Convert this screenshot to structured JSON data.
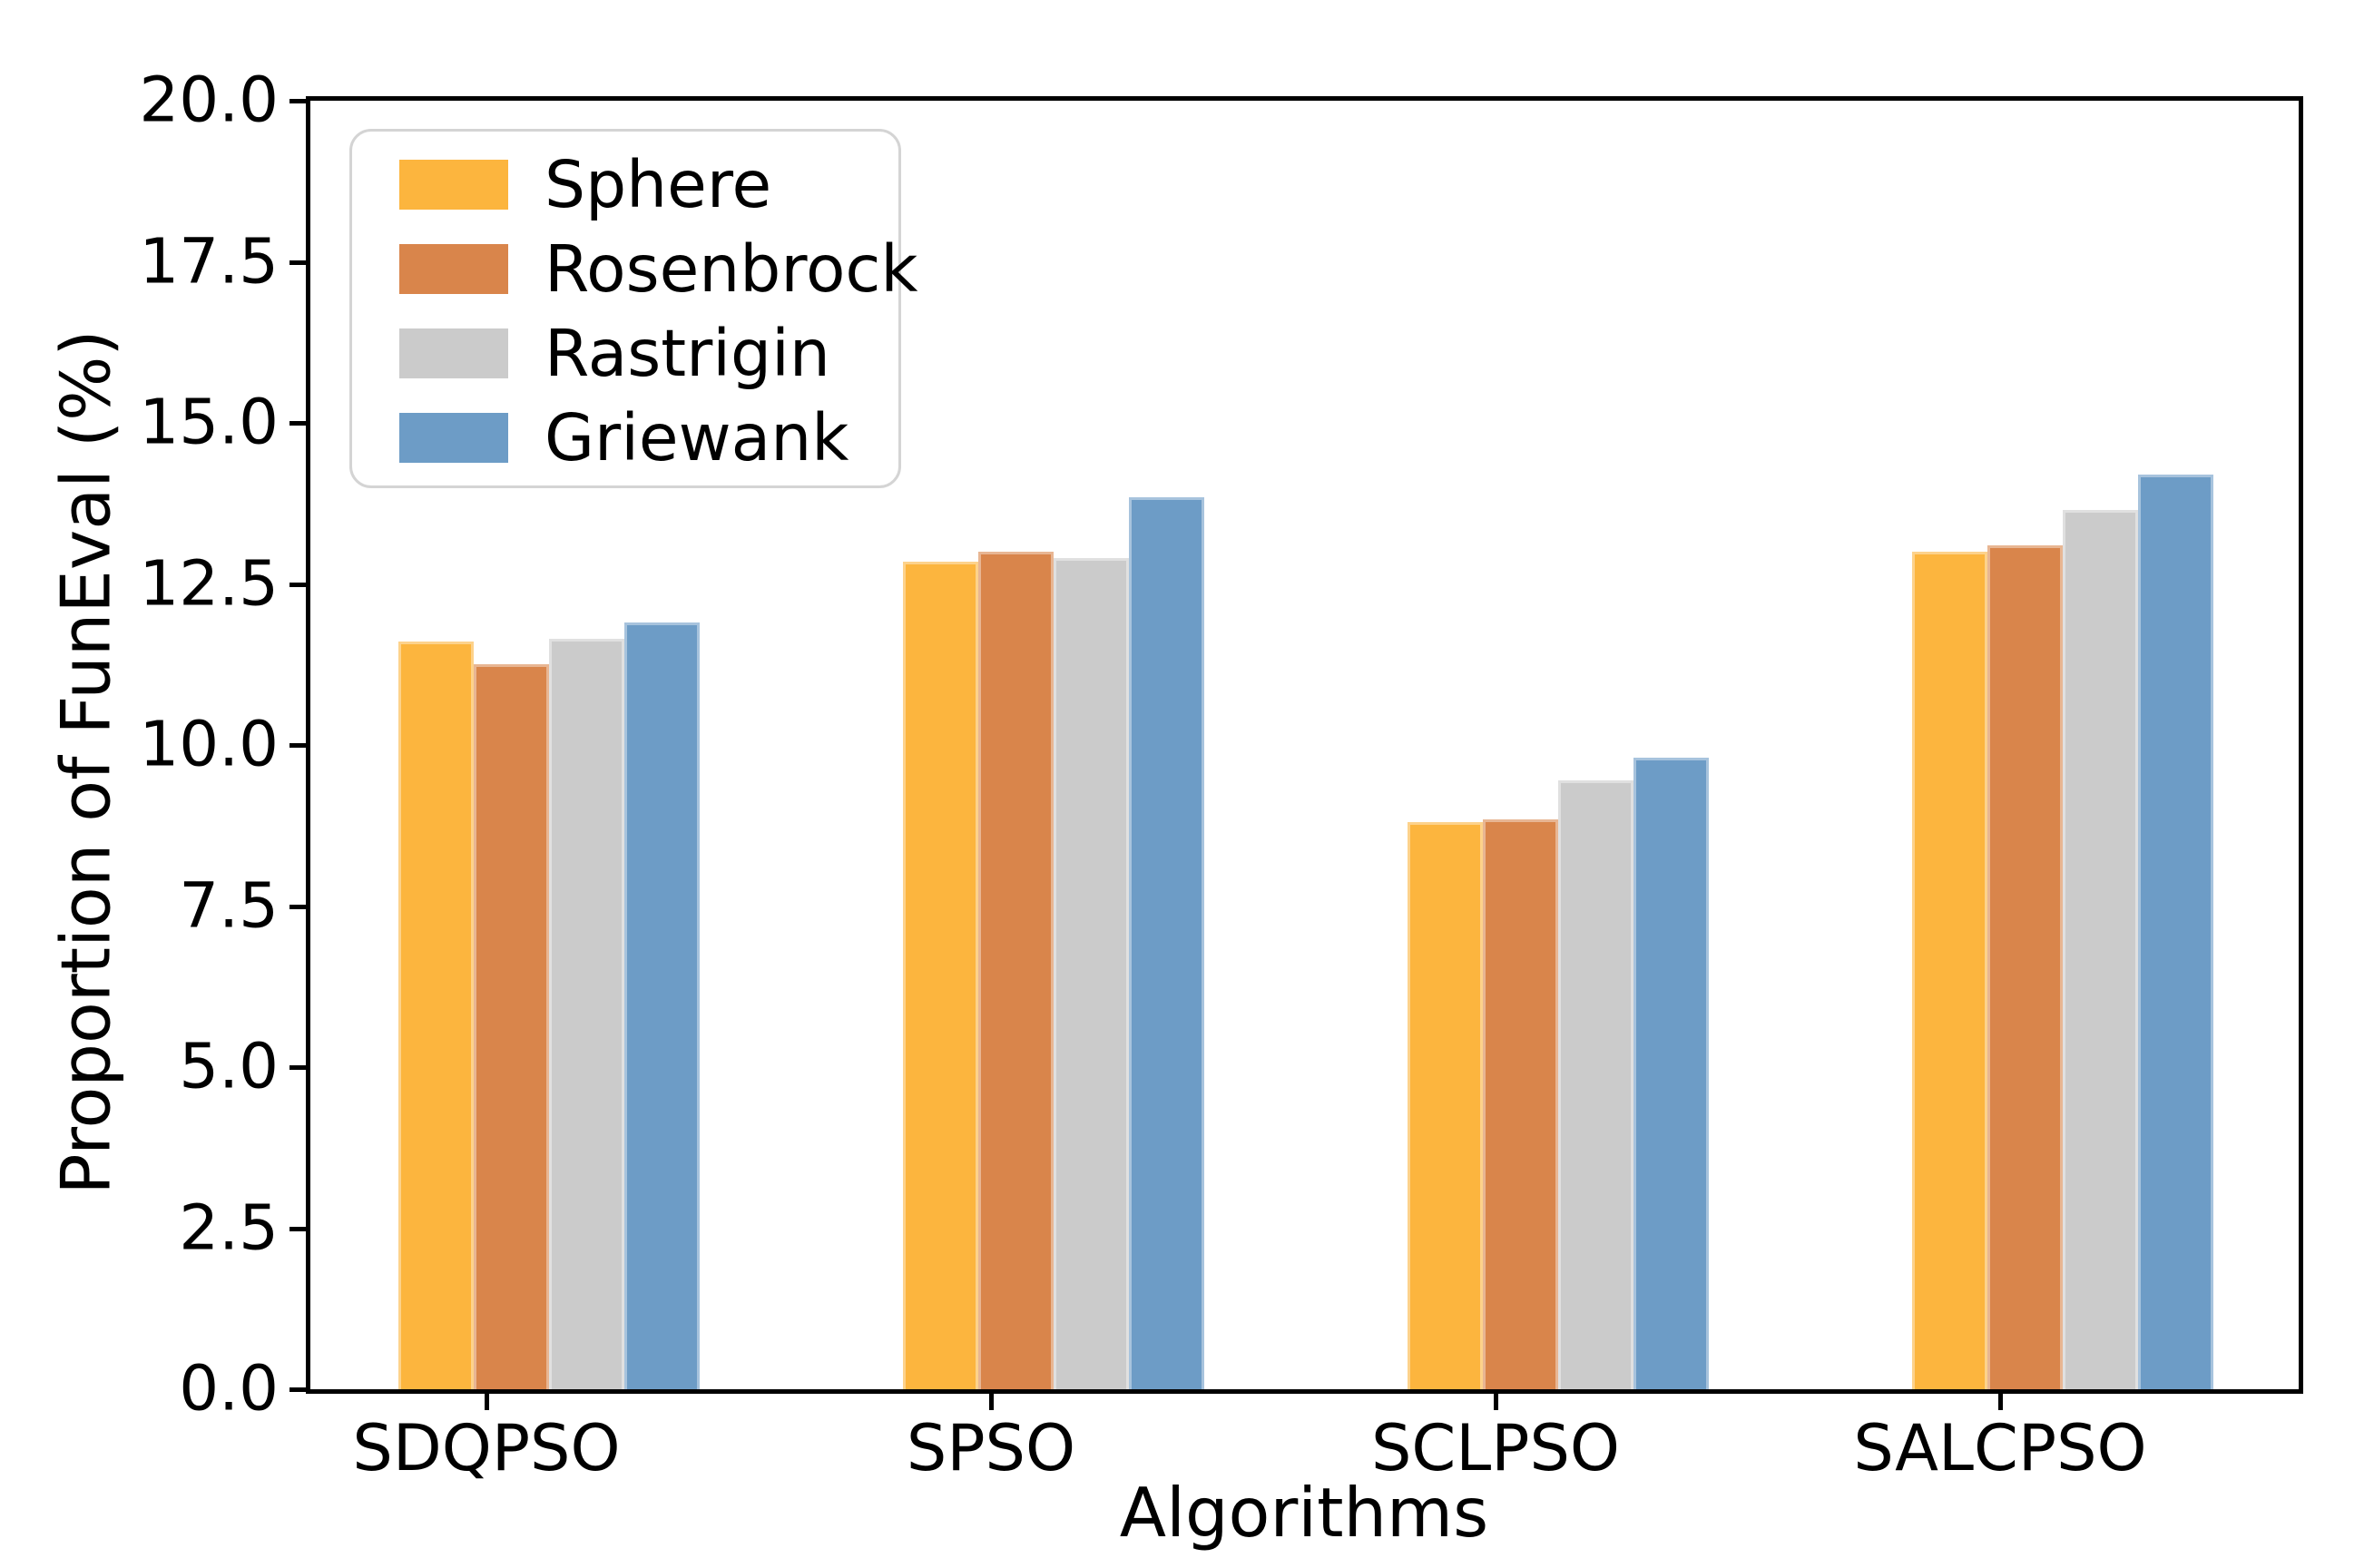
{
  "chart_data": {
    "type": "bar",
    "title": "",
    "xlabel": "Algorithms",
    "ylabel": "Proportion of FunEval (%)",
    "categories": [
      "SDQPSO",
      "SPSO",
      "SCLPSO",
      "SALCPSO"
    ],
    "series": [
      {
        "name": "Sphere",
        "color": "#FCB53E",
        "values": [
          11.6,
          12.85,
          8.8,
          13.0
        ]
      },
      {
        "name": "Rosenbrock",
        "color": "#D9854B",
        "values": [
          11.25,
          13.0,
          8.85,
          13.1
        ]
      },
      {
        "name": "Rastrigin",
        "color": "#CBCBCB",
        "values": [
          11.65,
          12.9,
          9.45,
          13.65
        ]
      },
      {
        "name": "Griewank",
        "color": "#6D9CC6",
        "values": [
          11.9,
          13.85,
          9.8,
          14.2
        ]
      }
    ],
    "ylim": [
      0,
      20
    ],
    "ytick_labels": [
      "0.0",
      "2.5",
      "5.0",
      "7.5",
      "10.0",
      "12.5",
      "15.0",
      "17.5",
      "20.0"
    ],
    "legend_position": "upper left",
    "grid": false,
    "axis_color": "#000000",
    "legend_border_color": "#d4d4d4"
  }
}
